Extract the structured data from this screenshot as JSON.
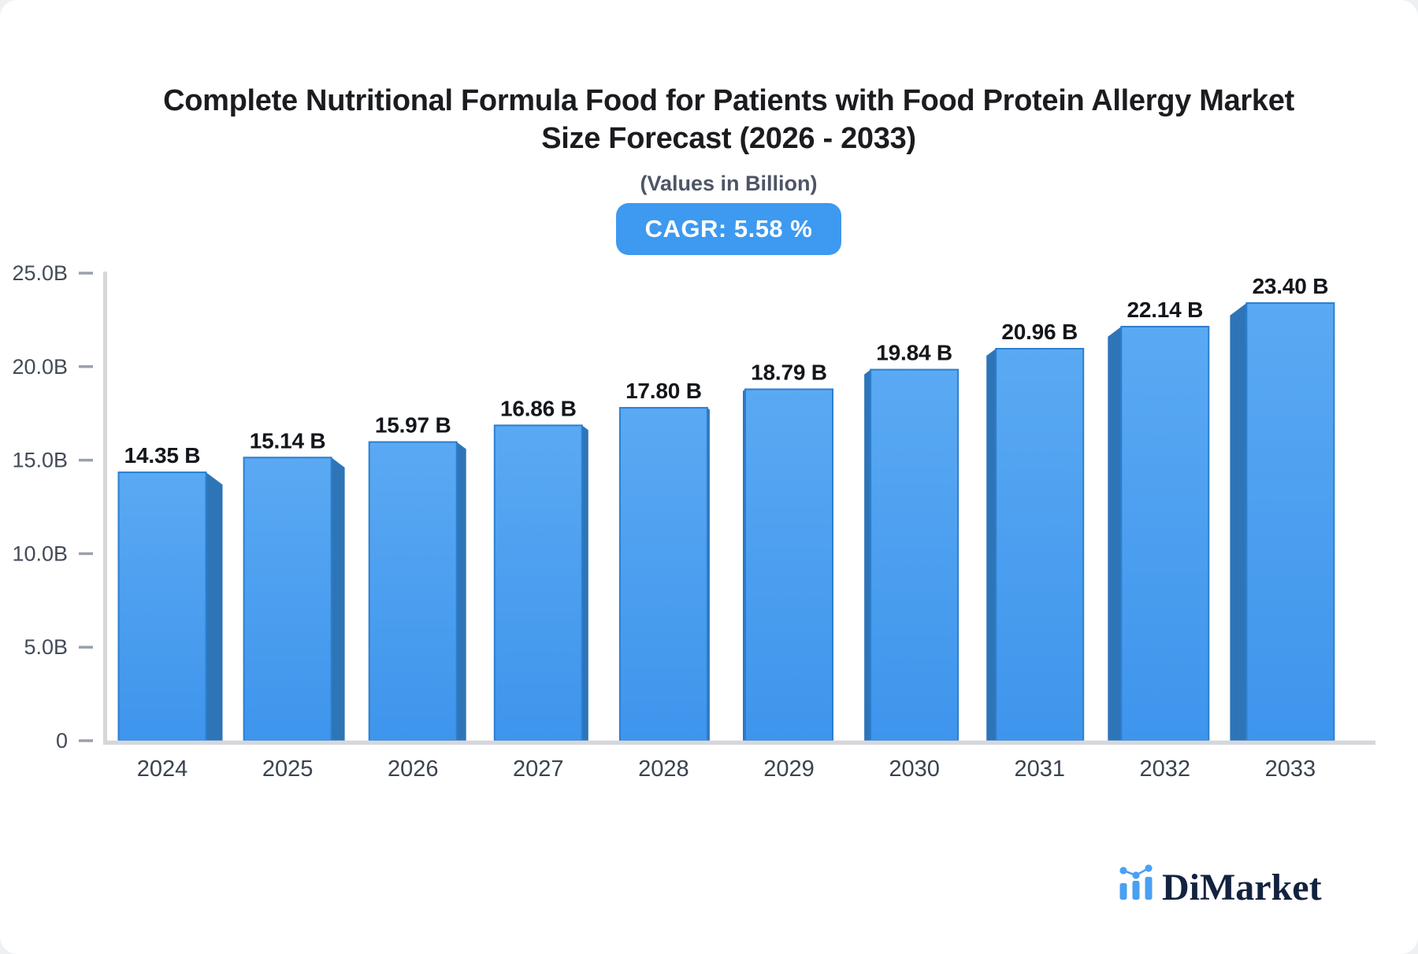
{
  "header": {
    "title_line1": "Complete Nutritional Formula Food for Patients with Food Protein Allergy Market",
    "title_line2": "Size Forecast (2026 - 2033)",
    "subtitle": "(Values in Billion)",
    "cagr_badge": "CAGR: 5.58 %"
  },
  "chart_data": {
    "type": "bar",
    "title": "Complete Nutritional Formula Food for Patients with Food Protein Allergy Market Size Forecast (2026 - 2033)",
    "subtitle": "(Values in Billion)",
    "cagr_pct": 5.58,
    "unit": "Billion",
    "categories": [
      "2024",
      "2025",
      "2026",
      "2027",
      "2028",
      "2029",
      "2030",
      "2031",
      "2032",
      "2033"
    ],
    "values": [
      14.35,
      15.14,
      15.97,
      16.86,
      17.8,
      18.79,
      19.84,
      20.96,
      22.14,
      23.4
    ],
    "bar_labels": [
      "14.35 B",
      "15.14 B",
      "15.97 B",
      "16.86 B",
      "17.80 B",
      "18.79 B",
      "19.84 B",
      "20.96 B",
      "22.14 B",
      "23.40 B"
    ],
    "ylim": [
      0,
      25
    ],
    "yticks": [
      {
        "label": "25.0B",
        "value": 25
      },
      {
        "label": "20.0B",
        "value": 20
      },
      {
        "label": "15.0B",
        "value": 15
      },
      {
        "label": "10.0B",
        "value": 10
      },
      {
        "label": "5.0B",
        "value": 5
      },
      {
        "label": "0",
        "value": 0
      }
    ],
    "grid": false,
    "legend": false,
    "style": "3d-perspective-bars"
  },
  "colors": {
    "bar_face_top": "#5aa9f3",
    "bar_face_bottom": "#3e95ec",
    "bar_face_stroke": "#2c7fd0",
    "bar_side": "#2e75b8",
    "badge_bg": "#3d9af0",
    "badge_text": "#ffffff",
    "axis_line": "#d5d7db",
    "tick_dash": "#9aa1ab",
    "ytick_text": "#434b58",
    "xtick_text": "#3a4350",
    "value_text": "#13161a",
    "title_text": "#1b1c1f",
    "subtitle_text": "#4d5565",
    "logo_blue": "#4aa0f2",
    "logo_text": "#13233f"
  },
  "logo": {
    "text": "DiMarket",
    "icon": "mini-bar-chart-icon"
  }
}
